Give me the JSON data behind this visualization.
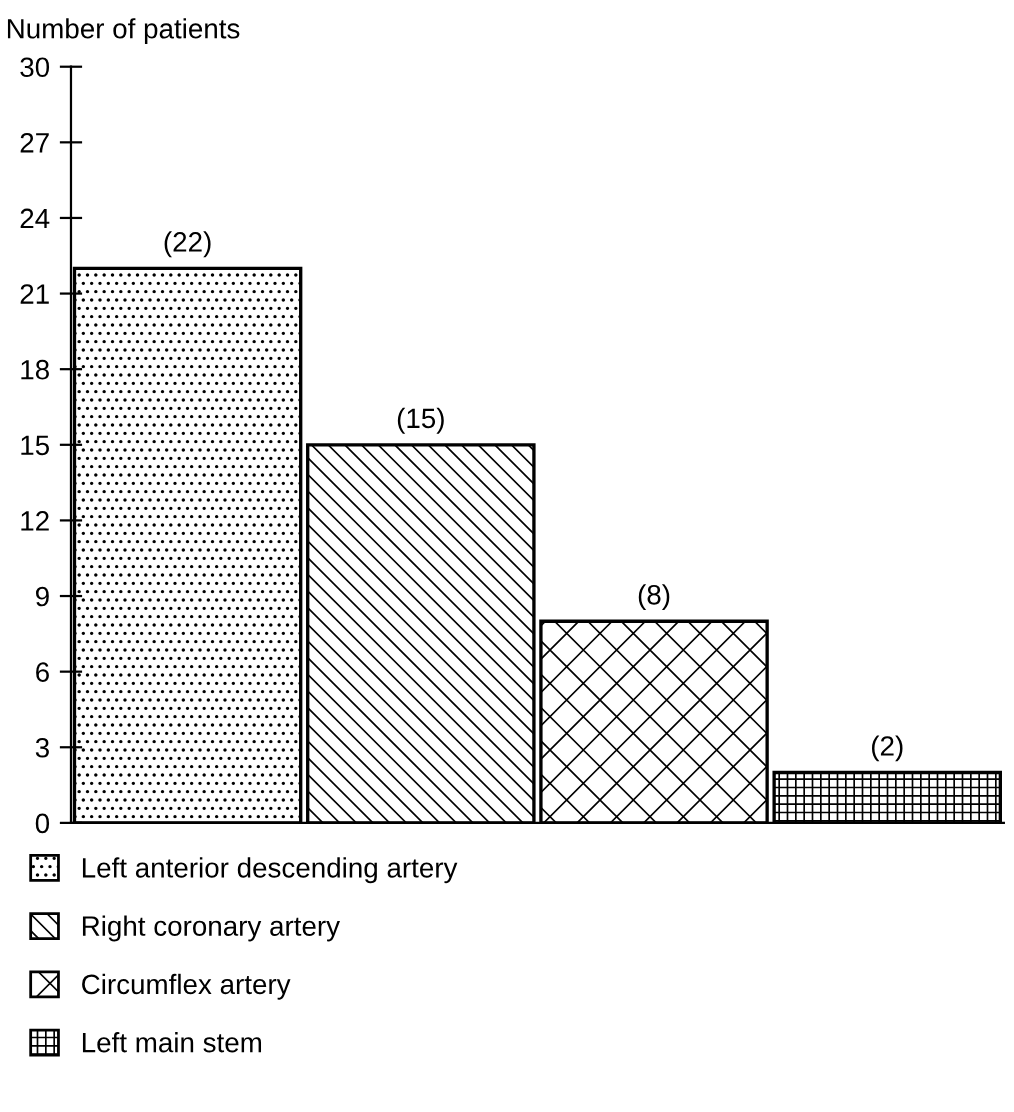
{
  "chart_data": {
    "type": "bar",
    "ylabel": "Number of patients",
    "categories": [
      null,
      null,
      null,
      null
    ],
    "series": [
      {
        "name": "Left anterior descending artery",
        "color": "#000000",
        "values": [
          22,
          null,
          null,
          null
        ],
        "value_labels": [
          "(22)",
          null,
          null,
          null
        ]
      },
      {
        "name": "Right coronary artery",
        "color": "#000000",
        "values": [
          null,
          15,
          null,
          null
        ],
        "value_labels": [
          null,
          "(15)",
          null,
          null
        ]
      },
      {
        "name": "Circumflex artery",
        "color": "#000000",
        "values": [
          null,
          null,
          8,
          null
        ],
        "value_labels": [
          null,
          null,
          "(8)",
          null
        ]
      },
      {
        "name": "Left main stem",
        "color": "#000000",
        "values": [
          null,
          null,
          null,
          2
        ],
        "value_labels": [
          null,
          null,
          null,
          "(2)"
        ]
      }
    ],
    "ylim": [
      0,
      30
    ],
    "yticks": [
      0,
      3,
      6,
      9,
      12,
      15,
      18,
      21,
      24,
      27,
      30
    ],
    "tick_labels": "y",
    "grid": false,
    "legend": "bottom"
  }
}
